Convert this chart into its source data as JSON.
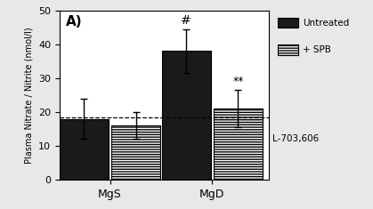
{
  "title": "A)",
  "ylabel": "Plasma Nitrate / Nitrite (nmol/l)",
  "groups": [
    "MgS",
    "MgD"
  ],
  "bar_values_untreated": [
    18.0,
    38.0
  ],
  "bar_values_spb": [
    16.0,
    21.0
  ],
  "bar_errors_untreated": [
    6.0,
    6.5
  ],
  "bar_errors_spb": [
    4.0,
    5.5
  ],
  "bar_color_untreated": "#1a1a1a",
  "bar_color_spb": "#ffffff",
  "bar_hatch_untreated": null,
  "bar_hatch_spb": "---",
  "ylim": [
    0,
    50
  ],
  "yticks": [
    0,
    10,
    20,
    30,
    40,
    50
  ],
  "dashed_line_y": 18.5,
  "annot_hash": "#",
  "annot_stars": "**",
  "legend_label_1": "Untreated",
  "legend_label_2": "+ SPB",
  "legend_label_3": "L-703,606",
  "background_color": "#e8e8e8",
  "plot_background": "#ffffff",
  "bar_width": 0.32,
  "group_positions": [
    0.28,
    0.95
  ]
}
